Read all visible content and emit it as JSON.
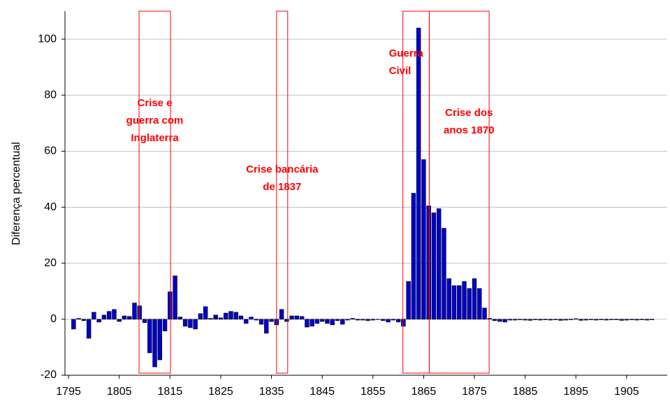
{
  "chart_data": {
    "type": "bar",
    "y_label": "Diferença percentual",
    "x": [
      1796,
      1797,
      1798,
      1799,
      1800,
      1801,
      1802,
      1803,
      1804,
      1805,
      1806,
      1807,
      1808,
      1809,
      1810,
      1811,
      1812,
      1813,
      1814,
      1815,
      1816,
      1817,
      1818,
      1819,
      1820,
      1821,
      1822,
      1823,
      1824,
      1825,
      1826,
      1827,
      1828,
      1829,
      1830,
      1831,
      1832,
      1833,
      1834,
      1835,
      1836,
      1837,
      1838,
      1839,
      1840,
      1841,
      1842,
      1843,
      1844,
      1845,
      1846,
      1847,
      1848,
      1849,
      1850,
      1851,
      1852,
      1853,
      1854,
      1855,
      1856,
      1857,
      1858,
      1859,
      1860,
      1861,
      1862,
      1863,
      1864,
      1865,
      1866,
      1867,
      1868,
      1869,
      1870,
      1871,
      1872,
      1873,
      1874,
      1875,
      1876,
      1877,
      1878,
      1879,
      1880,
      1881,
      1882,
      1883,
      1884,
      1885,
      1886,
      1887,
      1888,
      1889,
      1890,
      1891,
      1892,
      1893,
      1894,
      1895,
      1896,
      1897,
      1898,
      1899,
      1900,
      1901,
      1902,
      1903,
      1904,
      1905,
      1906,
      1907,
      1908,
      1909,
      1910
    ],
    "values": [
      -3.5,
      0.3,
      -0.5,
      -6.8,
      2.5,
      -1,
      1.5,
      2.8,
      3.5,
      -0.8,
      1.2,
      1,
      5.8,
      4.8,
      -1.2,
      -12,
      -17,
      -14.5,
      -4.2,
      9.8,
      15.5,
      0.8,
      -2.5,
      -3,
      -3.5,
      2,
      4.5,
      0.3,
      1.5,
      0.5,
      2.2,
      2.8,
      2.5,
      1.2,
      -1.5,
      0.8,
      -0.3,
      -1.8,
      -5,
      -0.8,
      -2,
      3.5,
      -0.8,
      1.2,
      1.2,
      1,
      -2.8,
      -2.5,
      -1.5,
      -0.8,
      -1.5,
      -2,
      -0.5,
      -1.8,
      -0.3,
      0.3,
      -0.3,
      -0.3,
      -0.5,
      -0.3,
      0,
      -0.5,
      -1,
      -0.3,
      -1,
      -2.5,
      13.5,
      45,
      104,
      57,
      40.5,
      38,
      39.5,
      32.5,
      14.5,
      12,
      12,
      13.5,
      11,
      14.5,
      11,
      4,
      0.3,
      -0.5,
      -0.8,
      -1,
      -0.3,
      -0.3,
      -0.2,
      -0.3,
      -0.4,
      -0.2,
      -0.3,
      -0.2,
      -0.3,
      -0.2,
      -0.4,
      -0.3,
      -0.2,
      0.2,
      -0.4,
      -0.3,
      -0.2,
      -0.3,
      -0.2,
      -0.3,
      -0.2,
      -0.2,
      -0.4,
      -0.3,
      -0.2,
      -0.3,
      -0.2,
      -0.3,
      -0.2
    ],
    "color": "#0000cc",
    "xlim": [
      1794.3,
      1913
    ],
    "xticks": [
      1795,
      1805,
      1815,
      1825,
      1835,
      1845,
      1855,
      1865,
      1875,
      1885,
      1895,
      1905
    ],
    "ylim": [
      -20,
      110
    ],
    "yticks": [
      -20,
      0,
      20,
      40,
      60,
      80,
      100
    ],
    "grid": true,
    "annotations": [
      {
        "lines": [
          "Crise e",
          "guerra com",
          "Inglaterra"
        ],
        "x_range": [
          1808.9,
          1815.1
        ],
        "color": "#ff0000"
      },
      {
        "lines": [
          "Crise bancária",
          "de 1837"
        ],
        "x_range": [
          1836,
          1838.2
        ],
        "color": "#ff0000"
      },
      {
        "lines": [
          "Guerra",
          "Civil"
        ],
        "x_range": [
          1860.9,
          1866.1
        ],
        "color": "#ff0000"
      },
      {
        "lines": [
          "Crise dos",
          "anos 1870"
        ],
        "x_range": [
          1866.1,
          1877.9
        ],
        "color": "#ff0000"
      }
    ]
  }
}
